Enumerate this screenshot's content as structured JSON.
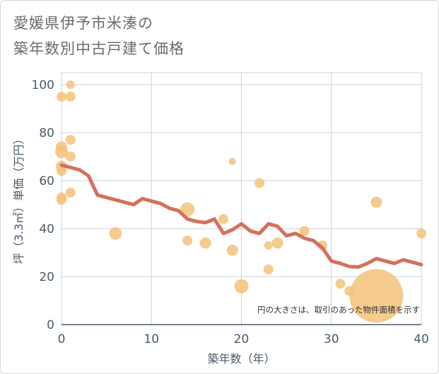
{
  "title": {
    "line1": "愛媛県伊予市米湊の",
    "line2": "築年数別中古戸建て価格"
  },
  "chart_data": {
    "type": "scatter",
    "xlabel": "築年数（年）",
    "ylabel": "坪（3.3㎡）単価（万円）",
    "xlim": [
      0,
      40
    ],
    "ylim": [
      0,
      105
    ],
    "xticks": [
      0,
      10,
      20,
      30,
      40
    ],
    "yticks": [
      0,
      20,
      40,
      60,
      80,
      100
    ],
    "grid": true,
    "annotation": "円の大きさは、取引のあった物件面積を示す",
    "colors": {
      "bubble": "#f3c27a",
      "line": "#d4705d",
      "grid": "#c8d3dc",
      "axis": "#4a5a6a"
    },
    "bubbles": [
      {
        "x": 0,
        "y": 95,
        "size": 7
      },
      {
        "x": 0,
        "y": 74,
        "size": 8
      },
      {
        "x": 0,
        "y": 72,
        "size": 9
      },
      {
        "x": 0,
        "y": 66,
        "size": 8
      },
      {
        "x": 0,
        "y": 64,
        "size": 7
      },
      {
        "x": 0,
        "y": 53,
        "size": 7
      },
      {
        "x": 0,
        "y": 52,
        "size": 7
      },
      {
        "x": 1,
        "y": 100,
        "size": 6
      },
      {
        "x": 1,
        "y": 95,
        "size": 7
      },
      {
        "x": 1,
        "y": 77,
        "size": 7
      },
      {
        "x": 1,
        "y": 70,
        "size": 7
      },
      {
        "x": 1,
        "y": 55,
        "size": 7
      },
      {
        "x": 6,
        "y": 38,
        "size": 9
      },
      {
        "x": 14,
        "y": 48,
        "size": 10
      },
      {
        "x": 14,
        "y": 35,
        "size": 7
      },
      {
        "x": 16,
        "y": 34,
        "size": 8
      },
      {
        "x": 18,
        "y": 44,
        "size": 7
      },
      {
        "x": 19,
        "y": 68,
        "size": 5
      },
      {
        "x": 19,
        "y": 31,
        "size": 8
      },
      {
        "x": 20,
        "y": 16,
        "size": 10
      },
      {
        "x": 22,
        "y": 59,
        "size": 7
      },
      {
        "x": 23,
        "y": 33,
        "size": 6
      },
      {
        "x": 23,
        "y": 23,
        "size": 7
      },
      {
        "x": 24,
        "y": 34,
        "size": 8
      },
      {
        "x": 27,
        "y": 39,
        "size": 7
      },
      {
        "x": 29,
        "y": 33,
        "size": 7
      },
      {
        "x": 31,
        "y": 17,
        "size": 7
      },
      {
        "x": 32,
        "y": 14,
        "size": 7
      },
      {
        "x": 35,
        "y": 51,
        "size": 8
      },
      {
        "x": 35,
        "y": 12,
        "size": 38
      },
      {
        "x": 40,
        "y": 38,
        "size": 7
      }
    ],
    "series": [
      {
        "x": [
          0,
          1,
          2,
          3,
          4,
          5,
          6,
          7,
          8,
          9,
          10,
          11,
          12,
          13,
          14,
          15,
          16,
          17,
          18,
          19,
          20,
          21,
          22,
          23,
          24,
          25,
          26,
          27,
          28,
          29,
          30,
          31,
          32,
          33,
          34,
          35,
          36,
          37,
          38,
          39,
          40
        ],
        "y": [
          66.5,
          65.5,
          64.5,
          62,
          54,
          53,
          52,
          51,
          50,
          52.5,
          51.5,
          50.5,
          48.5,
          47.5,
          44,
          43,
          42.5,
          44,
          38,
          39.5,
          42,
          39,
          38,
          42,
          41,
          37,
          38,
          36,
          35,
          32,
          26.5,
          25.5,
          24.2,
          24,
          25.5,
          27.5,
          26.5,
          25.5,
          27,
          26,
          25
        ]
      }
    ]
  }
}
